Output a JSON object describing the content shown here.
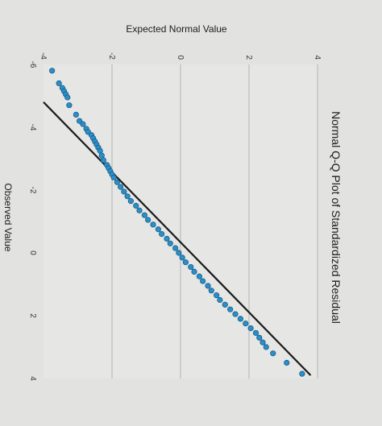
{
  "chart_data": {
    "type": "scatter",
    "title": "Normal Q-Q Plot of Standardized Residual",
    "xlabel": "Observed Value",
    "ylabel": "Expected Normal Value",
    "xlim": [
      -6,
      4
    ],
    "ylim": [
      -4,
      4
    ],
    "x_ticks": [
      "-6",
      "-4",
      "-2",
      "0",
      "2",
      "4"
    ],
    "y_ticks": [
      "-4",
      "-2",
      "0",
      "2",
      "4"
    ],
    "grid": "horizontal",
    "reference_line": {
      "from": [
        -4.8,
        -4.0
      ],
      "to": [
        3.9,
        3.8
      ]
    },
    "colors": {
      "points": "#2a8fc9",
      "point_edge": "#1a5c85",
      "line": "#1a1a1a",
      "grid": "#b4b4b4",
      "background": "#e6e7e5"
    },
    "series": [
      {
        "points": [
          [
            -5.8,
            -3.75
          ],
          [
            -5.4,
            -3.55
          ],
          [
            -5.25,
            -3.45
          ],
          [
            -5.15,
            -3.4
          ],
          [
            -5.05,
            -3.35
          ],
          [
            -4.95,
            -3.3
          ],
          [
            -4.7,
            -3.25
          ],
          [
            -4.4,
            -3.05
          ],
          [
            -4.2,
            -2.95
          ],
          [
            -4.1,
            -2.85
          ],
          [
            -3.95,
            -2.75
          ],
          [
            -3.85,
            -2.7
          ],
          [
            -3.75,
            -2.6
          ],
          [
            -3.65,
            -2.55
          ],
          [
            -3.55,
            -2.5
          ],
          [
            -3.45,
            -2.45
          ],
          [
            -3.35,
            -2.4
          ],
          [
            -3.25,
            -2.35
          ],
          [
            -3.1,
            -2.3
          ],
          [
            -2.95,
            -2.25
          ],
          [
            -2.8,
            -2.15
          ],
          [
            -2.7,
            -2.1
          ],
          [
            -2.6,
            -2.05
          ],
          [
            -2.5,
            -2.0
          ],
          [
            -2.4,
            -1.95
          ],
          [
            -2.25,
            -1.85
          ],
          [
            -2.1,
            -1.75
          ],
          [
            -1.95,
            -1.65
          ],
          [
            -1.8,
            -1.55
          ],
          [
            -1.65,
            -1.45
          ],
          [
            -1.5,
            -1.3
          ],
          [
            -1.35,
            -1.2
          ],
          [
            -1.2,
            -1.05
          ],
          [
            -1.05,
            -0.95
          ],
          [
            -0.9,
            -0.8
          ],
          [
            -0.75,
            -0.65
          ],
          [
            -0.6,
            -0.55
          ],
          [
            -0.45,
            -0.4
          ],
          [
            -0.3,
            -0.3
          ],
          [
            -0.15,
            -0.15
          ],
          [
            0.0,
            -0.05
          ],
          [
            0.15,
            0.05
          ],
          [
            0.3,
            0.15
          ],
          [
            0.45,
            0.3
          ],
          [
            0.6,
            0.4
          ],
          [
            0.75,
            0.55
          ],
          [
            0.9,
            0.65
          ],
          [
            1.05,
            0.8
          ],
          [
            1.2,
            0.9
          ],
          [
            1.35,
            1.05
          ],
          [
            1.5,
            1.15
          ],
          [
            1.65,
            1.3
          ],
          [
            1.8,
            1.45
          ],
          [
            1.95,
            1.6
          ],
          [
            2.1,
            1.75
          ],
          [
            2.25,
            1.9
          ],
          [
            2.4,
            2.05
          ],
          [
            2.55,
            2.2
          ],
          [
            2.7,
            2.3
          ],
          [
            2.85,
            2.4
          ],
          [
            3.0,
            2.5
          ],
          [
            3.2,
            2.7
          ],
          [
            3.5,
            3.1
          ],
          [
            3.85,
            3.55
          ]
        ]
      }
    ]
  }
}
